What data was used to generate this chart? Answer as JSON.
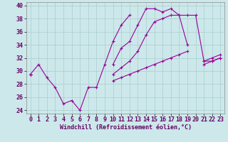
{
  "xlabel": "Windchill (Refroidissement éolien,°C)",
  "bg_color": "#cce8ea",
  "grid_color": "#aaccce",
  "line_color": "#990099",
  "ylim": [
    23.5,
    40.5
  ],
  "xlim": [
    -0.5,
    23.5
  ],
  "yticks": [
    24,
    26,
    28,
    30,
    32,
    34,
    36,
    38,
    40
  ],
  "xticks": [
    0,
    1,
    2,
    3,
    4,
    5,
    6,
    7,
    8,
    9,
    10,
    11,
    12,
    13,
    14,
    15,
    16,
    17,
    18,
    19,
    20,
    21,
    22,
    23
  ],
  "lines": [
    [
      29.5,
      31.0,
      29.0,
      27.5,
      25.0,
      25.5,
      24.0,
      27.5,
      27.5,
      31.0,
      34.5,
      37.0,
      38.5,
      null,
      null,
      null,
      null,
      null,
      null,
      null,
      null,
      null,
      null,
      null
    ],
    [
      29.5,
      null,
      null,
      null,
      null,
      null,
      null,
      null,
      null,
      null,
      31.0,
      33.5,
      34.5,
      37.0,
      39.5,
      39.5,
      39.0,
      39.5,
      38.5,
      34.0,
      null,
      31.0,
      31.5,
      32.0
    ],
    [
      29.5,
      null,
      null,
      null,
      null,
      null,
      null,
      null,
      null,
      null,
      29.5,
      30.5,
      31.5,
      33.0,
      35.5,
      37.5,
      38.0,
      38.5,
      38.5,
      38.5,
      38.5,
      31.5,
      31.5,
      32.0
    ],
    [
      29.5,
      null,
      null,
      null,
      null,
      null,
      null,
      null,
      null,
      null,
      28.5,
      29.0,
      29.5,
      30.0,
      30.5,
      31.0,
      31.5,
      32.0,
      32.5,
      33.0,
      null,
      31.5,
      32.0,
      32.5
    ]
  ],
  "xlabel_fontsize": 6,
  "tick_fontsize": 6,
  "marker_size": 3,
  "linewidth": 0.8
}
